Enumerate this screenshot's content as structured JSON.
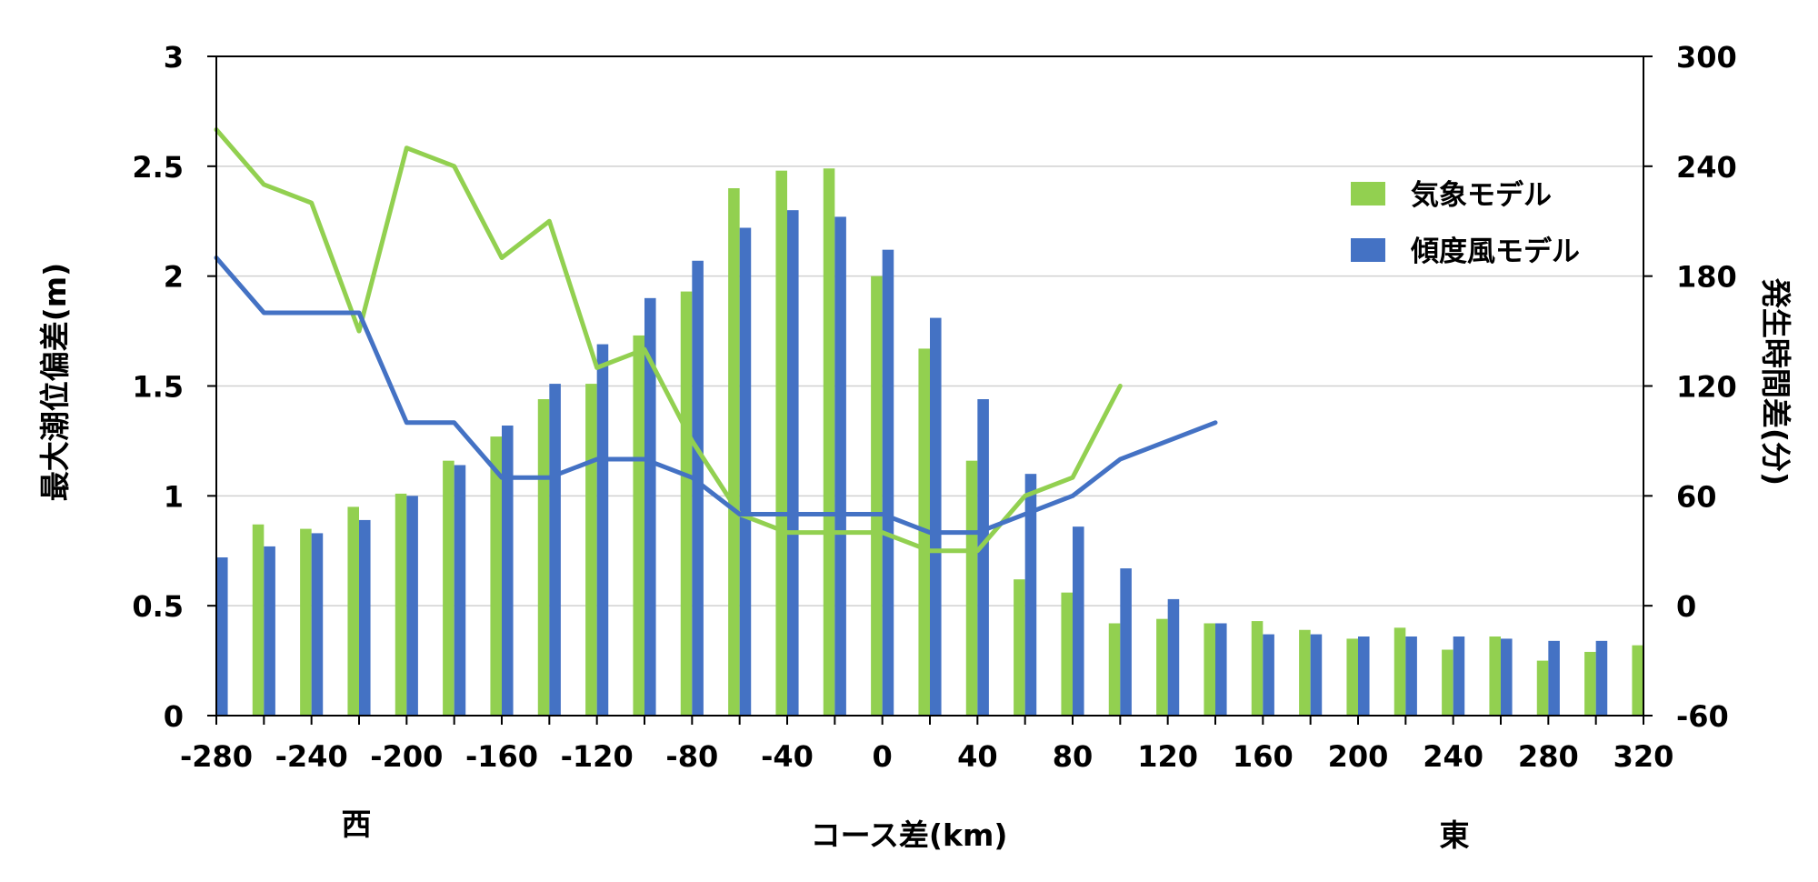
{
  "chart_data": {
    "type": "bar",
    "xlabel": "コース差(km)",
    "ylabel": "最大潮位偏差(m)",
    "y2label": "発生時間差(分)",
    "direction_labels": {
      "west": "西",
      "east": "東"
    },
    "x": [
      -280,
      -260,
      -240,
      -220,
      -200,
      -180,
      -160,
      -140,
      -120,
      -100,
      -80,
      -60,
      -40,
      -20,
      0,
      20,
      40,
      60,
      80,
      100,
      120,
      140,
      160,
      180,
      200,
      220,
      240,
      260,
      280,
      300,
      320
    ],
    "xticks": [
      -280,
      -240,
      -200,
      -160,
      -120,
      -80,
      -40,
      0,
      40,
      80,
      120,
      160,
      200,
      240,
      280,
      320
    ],
    "xlim": [
      -280,
      320
    ],
    "ylim": [
      0,
      3
    ],
    "yticks": [
      0,
      0.5,
      1,
      1.5,
      2,
      2.5,
      3
    ],
    "y2lim": [
      -60,
      300
    ],
    "y2ticks": [
      -60,
      0,
      60,
      120,
      180,
      240,
      300
    ],
    "grid": true,
    "legend_position": "top-right",
    "series": [
      {
        "name": "気象モデル",
        "kind": "bar",
        "color": "#92d050",
        "values": [
          null,
          0.87,
          0.85,
          0.95,
          1.01,
          1.16,
          1.27,
          1.44,
          1.51,
          1.73,
          1.93,
          2.4,
          2.48,
          2.49,
          2.0,
          1.67,
          1.16,
          0.62,
          0.56,
          0.42,
          0.44,
          0.42,
          0.43,
          0.39,
          0.35,
          0.4,
          0.3,
          0.36,
          0.25,
          0.29,
          0.32
        ]
      },
      {
        "name": "傾度風モデル",
        "kind": "bar",
        "color": "#4472c4",
        "values": [
          0.72,
          0.77,
          0.83,
          0.89,
          1.0,
          1.14,
          1.32,
          1.51,
          1.69,
          1.9,
          2.07,
          2.22,
          2.3,
          2.27,
          2.12,
          1.81,
          1.44,
          1.1,
          0.86,
          0.67,
          0.53,
          0.42,
          0.37,
          0.37,
          0.36,
          0.36,
          0.36,
          0.35,
          0.34,
          0.34,
          null
        ]
      },
      {
        "kind": "line",
        "axis": "y2",
        "color": "#92d050",
        "x": [
          -280,
          -260,
          -240,
          -220,
          -200,
          -180,
          -160,
          -140,
          -120,
          -100,
          -80,
          -60,
          -40,
          -20,
          0,
          20,
          40,
          60,
          80,
          100
        ],
        "values": [
          260,
          230,
          220,
          150,
          250,
          240,
          190,
          210,
          130,
          140,
          90,
          50,
          40,
          40,
          40,
          30,
          30,
          60,
          70,
          120
        ]
      },
      {
        "kind": "line",
        "axis": "y2",
        "color": "#4472c4",
        "x": [
          -280,
          -260,
          -240,
          -220,
          -200,
          -180,
          -160,
          -140,
          -120,
          -100,
          -80,
          -60,
          -40,
          -20,
          0,
          20,
          40,
          60,
          80,
          100,
          120,
          140
        ],
        "values": [
          190,
          160,
          160,
          160,
          100,
          100,
          70,
          70,
          80,
          80,
          70,
          50,
          50,
          50,
          50,
          40,
          40,
          50,
          60,
          80,
          90,
          100
        ]
      }
    ]
  }
}
